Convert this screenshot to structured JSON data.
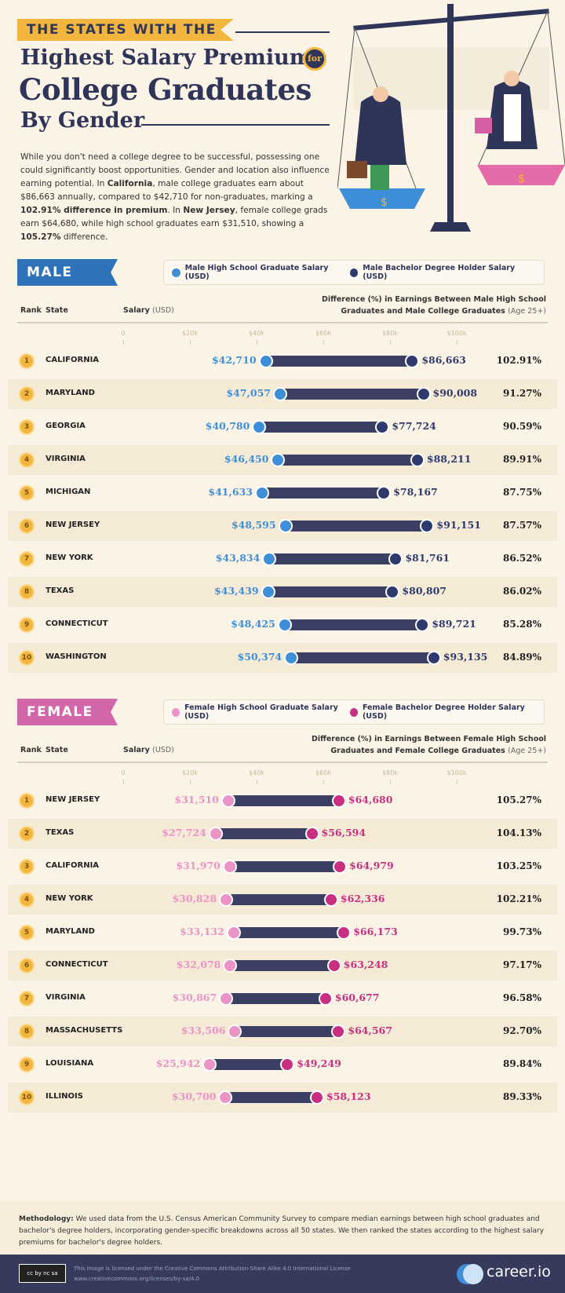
{
  "header": {
    "kicker": "THE STATES WITH THE",
    "title_line1": "Highest Salary Premium",
    "badge": "for",
    "title_line2": "College Graduates",
    "title_line3": "By Gender"
  },
  "intro": {
    "p1": "While you don't need a college degree to be successful, possessing one could significantly boost opportunities. Gender and location also influence earning potential. In ",
    "b1": "California",
    "p2": ", male college graduates earn about $86,663 annually, compared to $42,710 for non-graduates, marking a ",
    "b2": "102.91% difference in premium",
    "p3": ". In ",
    "b3": "New Jersey",
    "p4": ", female college grads earn $64,680, while high school graduates earn $31,510, showing a ",
    "b4": "105.27%",
    "p5": " difference."
  },
  "illustration": {
    "coin_symbol": "$"
  },
  "columns": {
    "rank": "Rank",
    "state": "State",
    "salary": "Salary",
    "salary_unit": "(USD)"
  },
  "colors": {
    "male_hs": "#3f8fd8",
    "male_ba": "#2e3a6e",
    "female_hs": "#eb93c6",
    "female_ba": "#c92f80",
    "bar": "#3a3f63",
    "rank_badge": "#f2b63f"
  },
  "chart_data": [
    {
      "type": "dumbbell",
      "section": "MALE",
      "legend": [
        "Male High School Graduate Salary (USD)",
        "Male Bachelor Degree Holder Salary (USD)"
      ],
      "diff_header": "Difference (%) in Earnings Between Male High School",
      "diff_header2": "Graduates and Male College Graduates",
      "diff_note": "(Age 25+)",
      "xticks": [
        "0",
        "$20k",
        "$40k",
        "$60k",
        "$80k",
        "$100k"
      ],
      "xlim": [
        0,
        100000
      ],
      "rows": [
        {
          "rank": "1",
          "state": "CALIFORNIA",
          "hs": 42710,
          "ba": 86663,
          "hs_label": "$42,710",
          "ba_label": "$86,663",
          "diff": "102.91%"
        },
        {
          "rank": "2",
          "state": "MARYLAND",
          "hs": 47057,
          "ba": 90008,
          "hs_label": "$47,057",
          "ba_label": "$90,008",
          "diff": "91.27%"
        },
        {
          "rank": "3",
          "state": "GEORGIA",
          "hs": 40780,
          "ba": 77724,
          "hs_label": "$40,780",
          "ba_label": "$77,724",
          "diff": "90.59%"
        },
        {
          "rank": "4",
          "state": "VIRGINIA",
          "hs": 46450,
          "ba": 88211,
          "hs_label": "$46,450",
          "ba_label": "$88,211",
          "diff": "89.91%"
        },
        {
          "rank": "5",
          "state": "MICHIGAN",
          "hs": 41633,
          "ba": 78167,
          "hs_label": "$41,633",
          "ba_label": "$78,167",
          "diff": "87.75%"
        },
        {
          "rank": "6",
          "state": "NEW JERSEY",
          "hs": 48595,
          "ba": 91151,
          "hs_label": "$48,595",
          "ba_label": "$91,151",
          "diff": "87.57%"
        },
        {
          "rank": "7",
          "state": "NEW YORK",
          "hs": 43834,
          "ba": 81761,
          "hs_label": "$43,834",
          "ba_label": "$81,761",
          "diff": "86.52%"
        },
        {
          "rank": "8",
          "state": "TEXAS",
          "hs": 43439,
          "ba": 80807,
          "hs_label": "$43,439",
          "ba_label": "$80,807",
          "diff": "86.02%"
        },
        {
          "rank": "9",
          "state": "CONNECTICUT",
          "hs": 48425,
          "ba": 89721,
          "hs_label": "$48,425",
          "ba_label": "$89,721",
          "diff": "85.28%"
        },
        {
          "rank": "10",
          "state": "WASHINGTON",
          "hs": 50374,
          "ba": 93135,
          "hs_label": "$50,374",
          "ba_label": "$93,135",
          "diff": "84.89%"
        }
      ]
    },
    {
      "type": "dumbbell",
      "section": "FEMALE",
      "legend": [
        "Female High School Graduate Salary (USD)",
        "Female Bachelor Degree Holder Salary (USD)"
      ],
      "diff_header": "Difference (%) in Earnings Between Female High School",
      "diff_header2": "Graduates and Female College Graduates",
      "diff_note": "(Age 25+)",
      "xticks": [
        "0",
        "$20k",
        "$40k",
        "$60k",
        "$80k",
        "$100k"
      ],
      "xlim": [
        0,
        100000
      ],
      "rows": [
        {
          "rank": "1",
          "state": "NEW JERSEY",
          "hs": 31510,
          "ba": 64680,
          "hs_label": "$31,510",
          "ba_label": "$64,680",
          "diff": "105.27%"
        },
        {
          "rank": "2",
          "state": "TEXAS",
          "hs": 27724,
          "ba": 56594,
          "hs_label": "$27,724",
          "ba_label": "$56,594",
          "diff": "104.13%"
        },
        {
          "rank": "3",
          "state": "CALIFORNIA",
          "hs": 31970,
          "ba": 64979,
          "hs_label": "$31,970",
          "ba_label": "$64,979",
          "diff": "103.25%"
        },
        {
          "rank": "4",
          "state": "NEW YORK",
          "hs": 30828,
          "ba": 62336,
          "hs_label": "$30,828",
          "ba_label": "$62,336",
          "diff": "102.21%"
        },
        {
          "rank": "5",
          "state": "MARYLAND",
          "hs": 33132,
          "ba": 66173,
          "hs_label": "$33,132",
          "ba_label": "$66,173",
          "diff": "99.73%"
        },
        {
          "rank": "6",
          "state": "CONNECTICUT",
          "hs": 32078,
          "ba": 63248,
          "hs_label": "$32,078",
          "ba_label": "$63,248",
          "diff": "97.17%"
        },
        {
          "rank": "7",
          "state": "VIRGINIA",
          "hs": 30867,
          "ba": 60677,
          "hs_label": "$30,867",
          "ba_label": "$60,677",
          "diff": "96.58%"
        },
        {
          "rank": "8",
          "state": "MASSACHUSETTS",
          "hs": 33506,
          "ba": 64567,
          "hs_label": "$33,506",
          "ba_label": "$64,567",
          "diff": "92.70%"
        },
        {
          "rank": "9",
          "state": "LOUISIANA",
          "hs": 25942,
          "ba": 49249,
          "hs_label": "$25,942",
          "ba_label": "$49,249",
          "diff": "89.84%"
        },
        {
          "rank": "10",
          "state": "ILLINOIS",
          "hs": 30700,
          "ba": 58123,
          "hs_label": "$30,700",
          "ba_label": "$58,123",
          "diff": "89.33%"
        }
      ]
    }
  ],
  "methodology": {
    "label": "Methodology:",
    "text": " We used data from the U.S. Census American Community Survey to compare median earnings between high school graduates and bachelor's degree holders, incorporating gender-specific breakdowns across all 50 states. We then ranked the states according to the highest salary premiums for bachelor's degree holders."
  },
  "footer": {
    "cc_badge": "cc by nc sa",
    "license": "This image is licensed under the Creative Commons Attribution-Share Alike 4.0 International License",
    "license_url": "www.creativecommons.org/licenses/by-sa/4.0",
    "brand": "career.io"
  }
}
